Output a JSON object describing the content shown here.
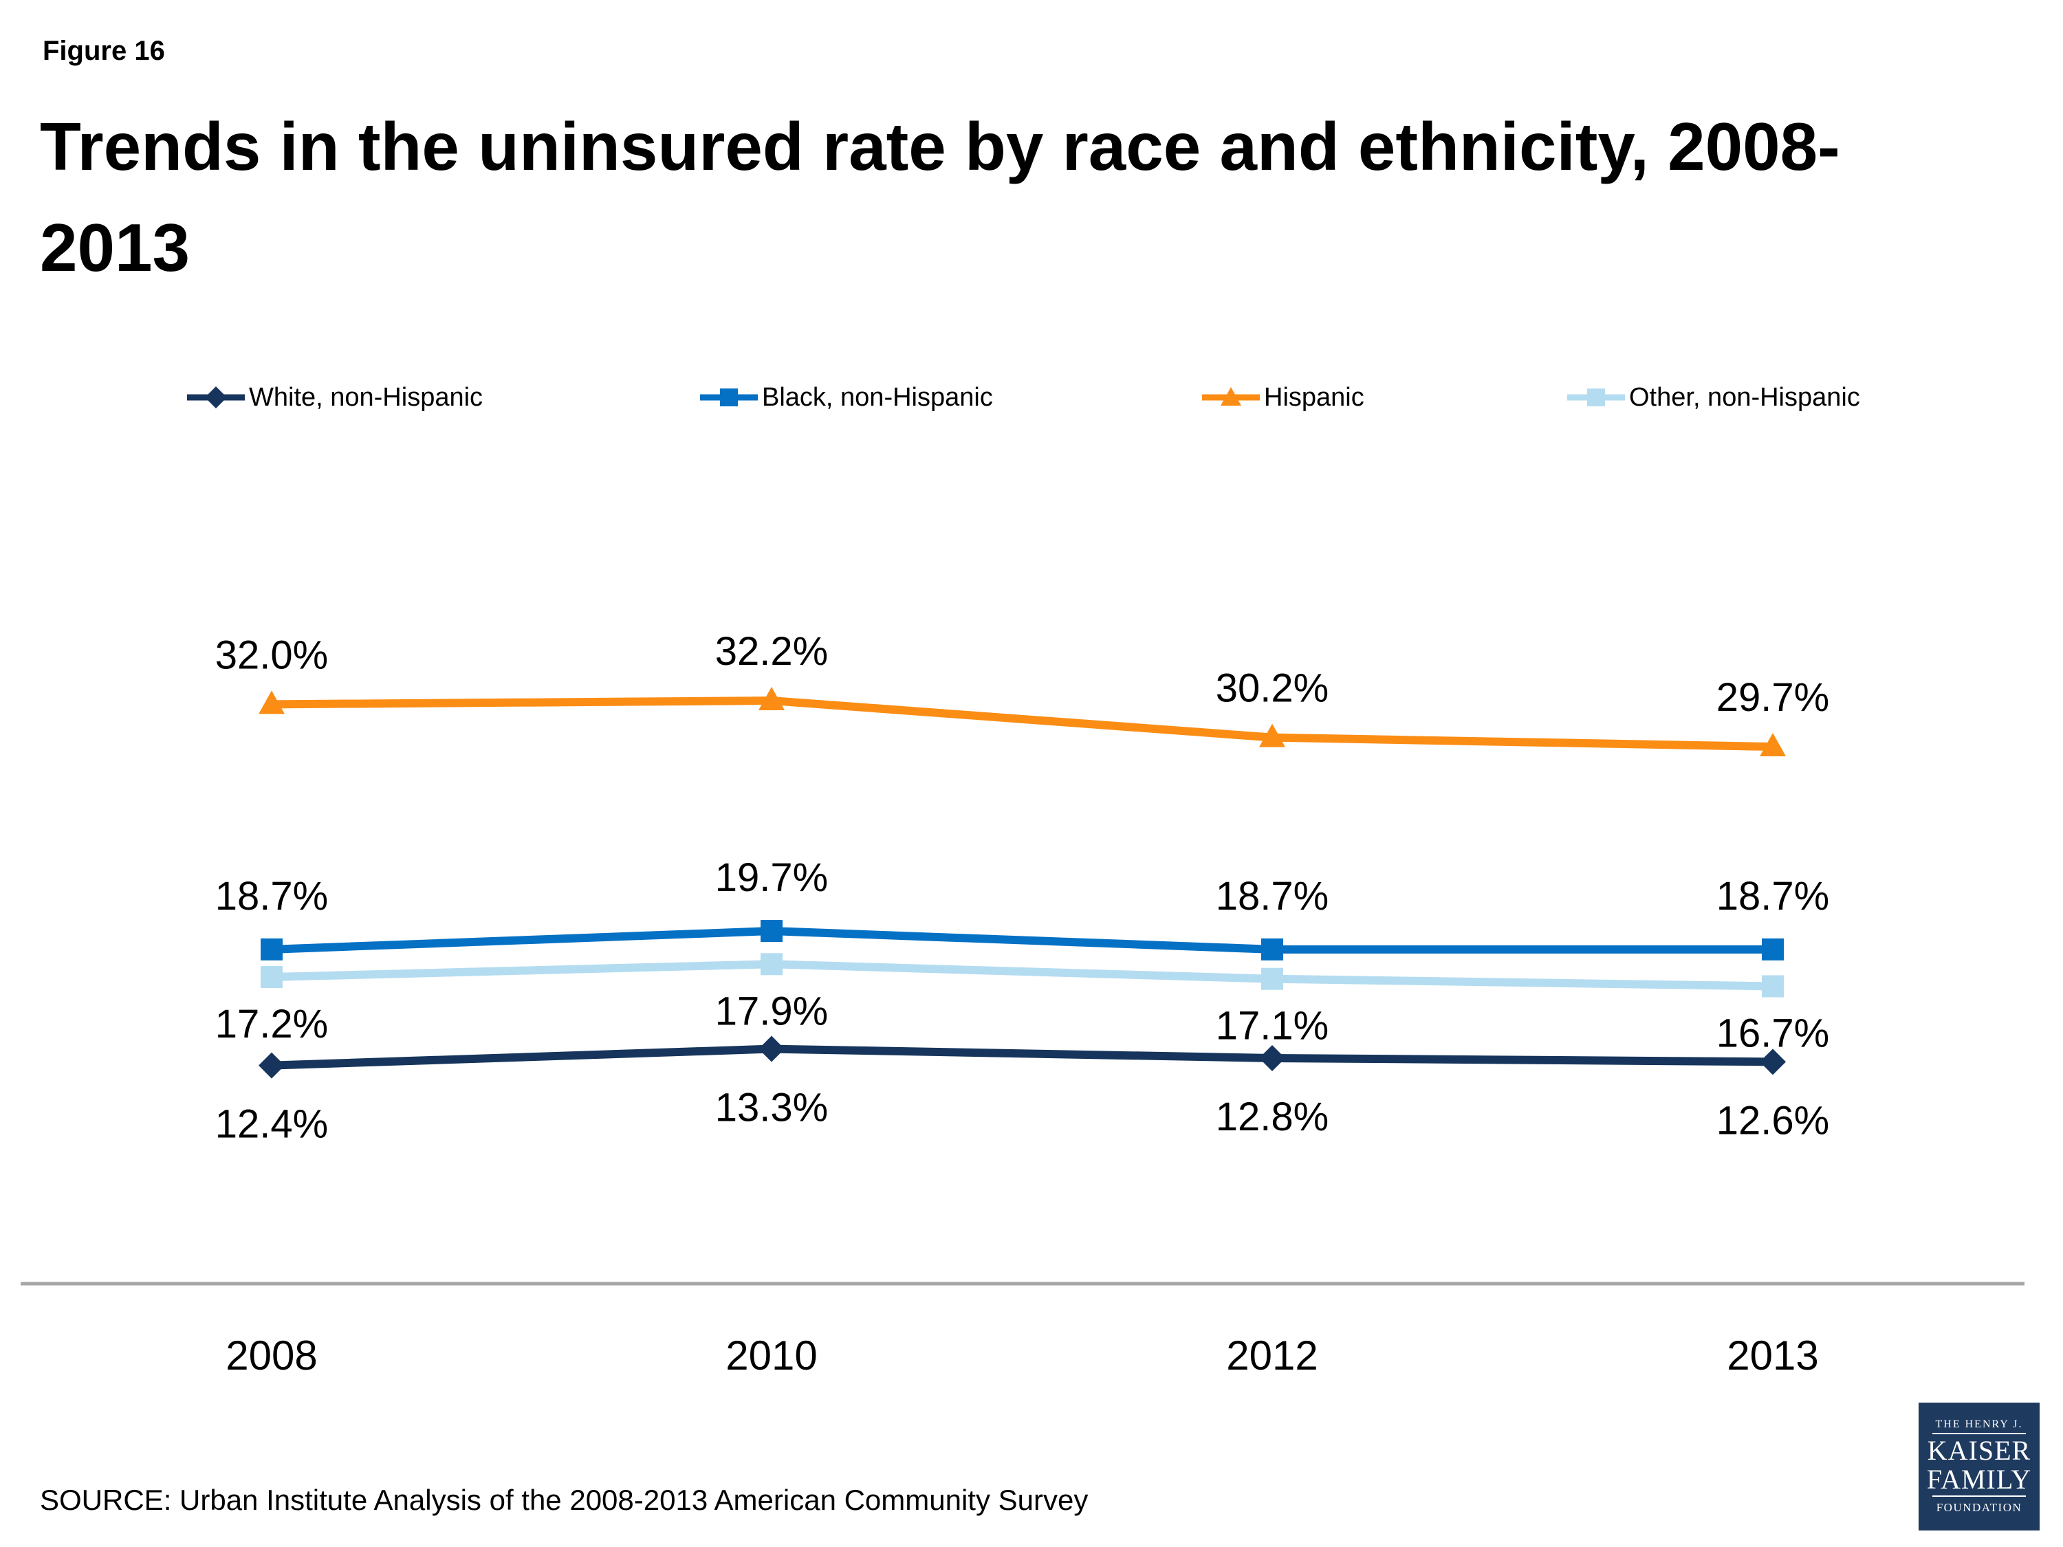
{
  "figure_label": "Figure 16",
  "header": {
    "title_line1": "Trends in the uninsured rate by race and ethnicity, 2008-",
    "title_line2": "2013"
  },
  "source": "SOURCE: Urban Institute Analysis of the 2008-2013 American Community Survey",
  "logo": {
    "line1": "THE HENRY J.",
    "line2": "KAISER",
    "line3": "FAMILY",
    "line4": "FOUNDATION",
    "bg": "#1E3A5F"
  },
  "chart_data": {
    "type": "line",
    "title": "Trends in the uninsured rate by race and ethnicity, 2008-2013",
    "categories": [
      "2008",
      "2010",
      "2012",
      "2013"
    ],
    "series": [
      {
        "name": "White, non-Hispanic",
        "values": [
          12.4,
          13.3,
          12.8,
          12.6
        ],
        "color": "#17355C",
        "marker": "diamond",
        "label_side": "below"
      },
      {
        "name": "Black, non-Hispanic",
        "values": [
          18.7,
          19.7,
          18.7,
          18.7
        ],
        "color": "#0571C4",
        "marker": "square",
        "label_side": "above"
      },
      {
        "name": "Hispanic",
        "values": [
          32.0,
          32.2,
          30.2,
          29.7
        ],
        "color": "#FB8D15",
        "marker": "triangle",
        "label_side": "above"
      },
      {
        "name": "Other, non-Hispanic",
        "values": [
          17.2,
          17.9,
          17.1,
          16.7
        ],
        "color": "#B4DCF0",
        "marker": "square",
        "label_side": "below"
      }
    ],
    "value_suffix": "%",
    "value_decimals": 1,
    "xlabel": "",
    "ylabel": "",
    "ylim": [
      0,
      35
    ],
    "grid": false,
    "legend_position": "top",
    "axis_line_color": "#A6A6A6"
  }
}
